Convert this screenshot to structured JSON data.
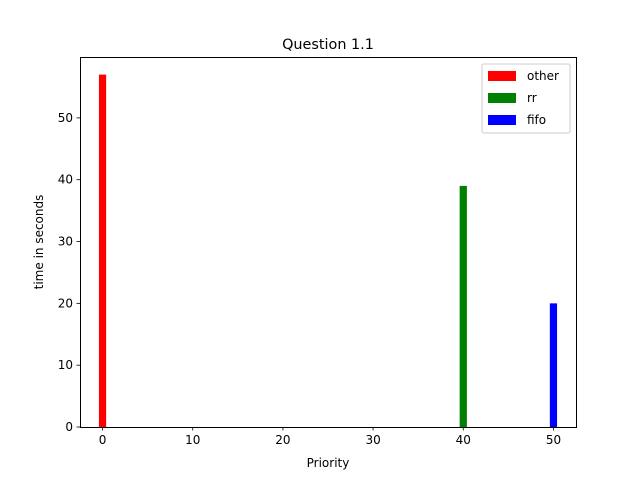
{
  "chart_data": {
    "type": "bar",
    "title": "Question 1.1",
    "xlabel": "Priority",
    "ylabel": "time in seconds",
    "xlim": [
      -2.5,
      52.5
    ],
    "ylim": [
      0,
      59.85
    ],
    "xticks": [
      0,
      10,
      20,
      30,
      40,
      50
    ],
    "yticks": [
      0,
      10,
      20,
      30,
      40,
      50
    ],
    "bar_width": 0.8,
    "grid": false,
    "legend_position": "upper right",
    "series": [
      {
        "name": "other",
        "color": "#ff0000",
        "x": [
          0
        ],
        "values": [
          57
        ]
      },
      {
        "name": "rr",
        "color": "#008000",
        "x": [
          40
        ],
        "values": [
          39
        ]
      },
      {
        "name": "fifo",
        "color": "#0000ff",
        "x": [
          50
        ],
        "values": [
          20
        ]
      }
    ]
  }
}
